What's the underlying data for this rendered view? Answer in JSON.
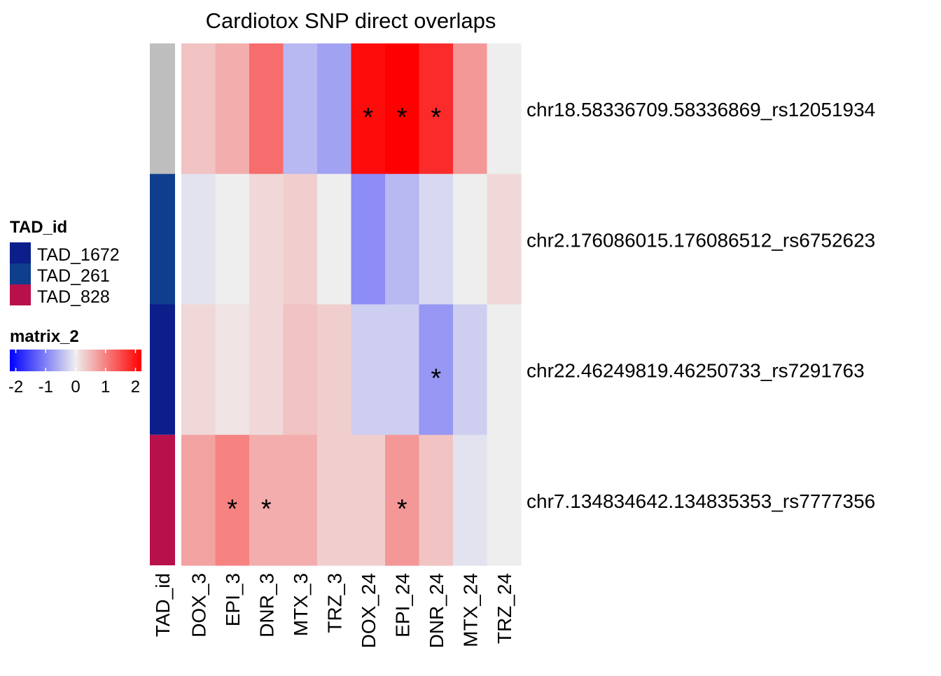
{
  "chart_data": {
    "type": "heatmap",
    "title": "Cardiotox SNP direct overlaps",
    "columns": [
      "DOX_3",
      "EPI_3",
      "DNR_3",
      "MTX_3",
      "TRZ_3",
      "DOX_24",
      "EPI_24",
      "DNR_24",
      "MTX_24",
      "TRZ_24"
    ],
    "rows": [
      "chr18.58336709.58336869_rs12051934",
      "chr2.176086015.176086512_rs6752623",
      "chr22.46249819.46250733_rs7291763",
      "chr7.134834642.134835353_rs7777356"
    ],
    "values": [
      [
        0.4,
        0.6,
        1.2,
        -0.5,
        -0.7,
        2.1,
        2.3,
        1.8,
        0.8,
        0.0
      ],
      [
        -0.1,
        0.0,
        0.2,
        0.3,
        0.0,
        -0.9,
        -0.5,
        -0.2,
        0.0,
        0.2
      ],
      [
        0.2,
        0.1,
        0.2,
        0.4,
        0.3,
        -0.3,
        -0.3,
        -0.8,
        -0.3,
        0.0
      ],
      [
        0.7,
        1.0,
        0.6,
        0.6,
        0.3,
        0.3,
        0.8,
        0.4,
        -0.1,
        0.0
      ]
    ],
    "significant": [
      [
        false,
        false,
        false,
        false,
        false,
        true,
        true,
        true,
        false,
        false
      ],
      [
        false,
        false,
        false,
        false,
        false,
        false,
        false,
        false,
        false,
        false
      ],
      [
        false,
        false,
        false,
        false,
        false,
        false,
        false,
        true,
        false,
        false
      ],
      [
        false,
        true,
        true,
        false,
        false,
        false,
        true,
        false,
        false,
        false
      ]
    ],
    "significance_symbol": "*",
    "annotation": {
      "name": "TAD_id",
      "column_label": "TAD_id",
      "row_values": [
        null,
        "TAD_261",
        "TAD_1672",
        "TAD_828"
      ],
      "missing_color": "#BEBEBE",
      "legend": [
        {
          "label": "TAD_1672",
          "color": "#0B1E8A"
        },
        {
          "label": "TAD_261",
          "color": "#0E3E8C"
        },
        {
          "label": "TAD_828",
          "color": "#B8104B"
        }
      ]
    },
    "colorbar": {
      "name": "matrix_2",
      "range": [
        -2.2,
        2.2
      ],
      "ticks": [
        -2,
        -1,
        0,
        1,
        2
      ],
      "colors": {
        "low": "#0000FF",
        "mid": "#EEEEEE",
        "high": "#FF0000"
      }
    }
  }
}
